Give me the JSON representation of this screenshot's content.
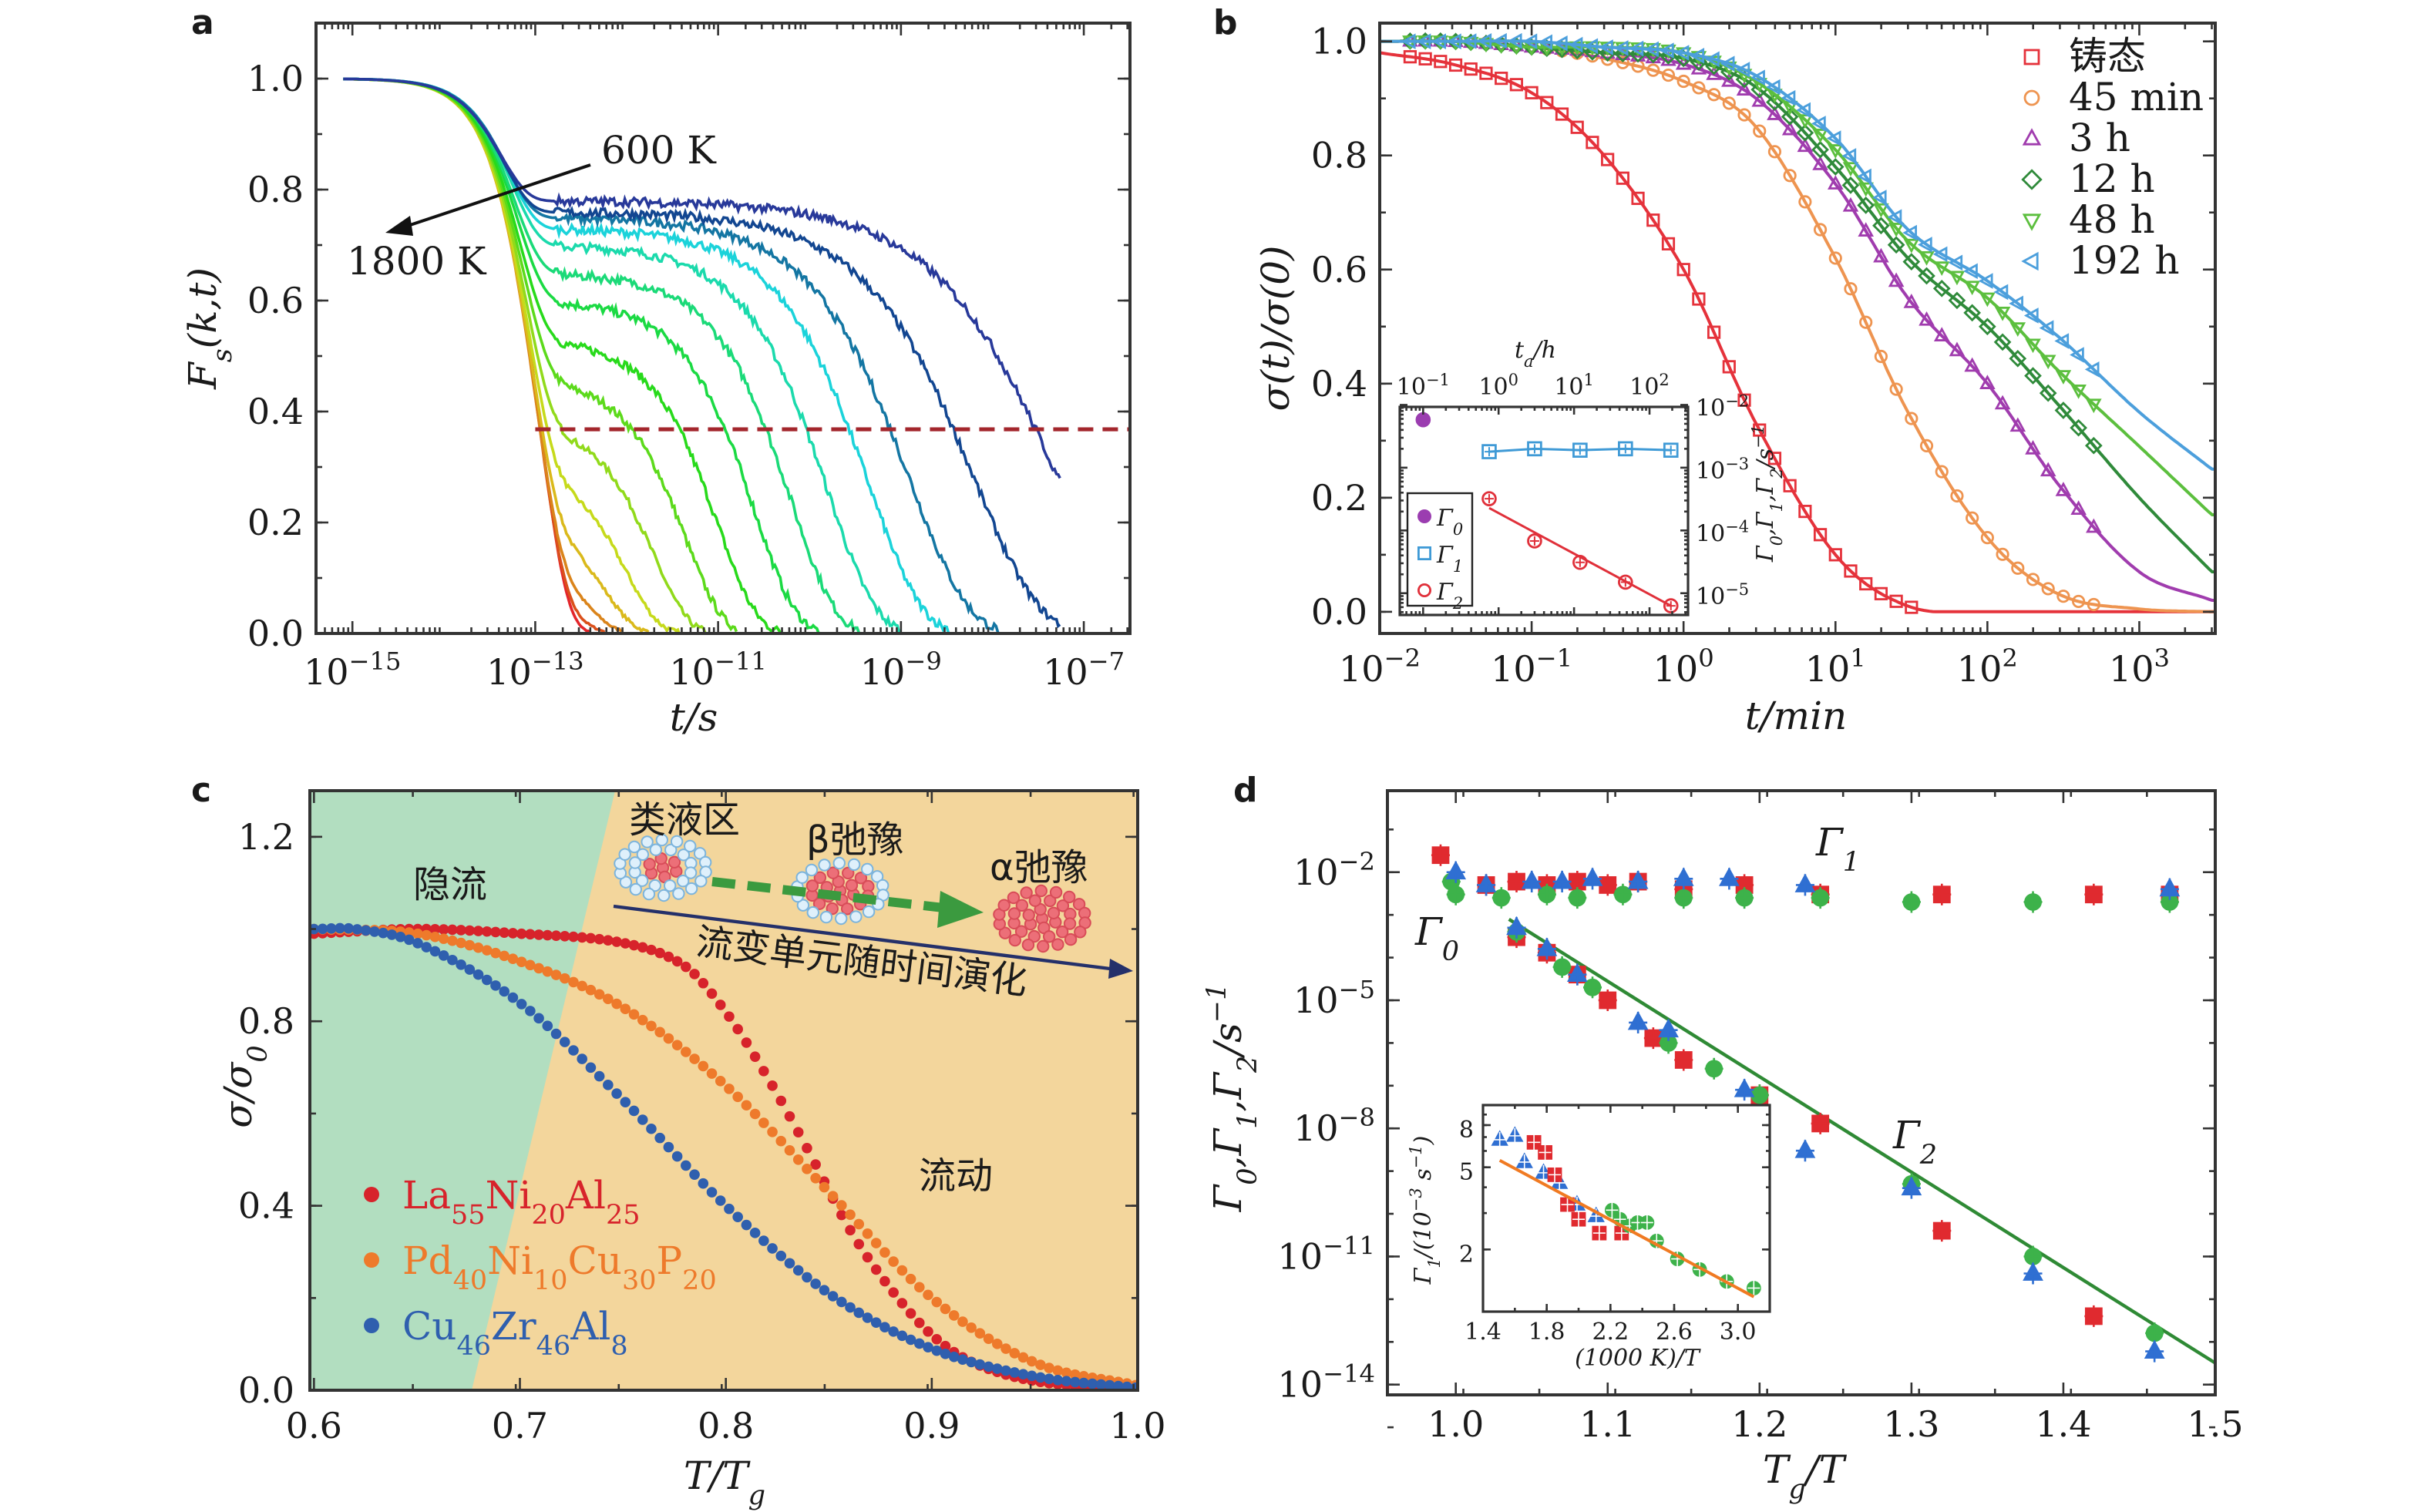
{
  "panel_labels": {
    "a": "a",
    "b": "b",
    "c": "c",
    "d": "d"
  },
  "chart_data": [
    {
      "panel": "a",
      "type": "line",
      "xlabel": "t/s",
      "ylabel": "F_{s}(k,t)",
      "xscale": "log",
      "yscale": "linear",
      "xlim": [
        4e-16,
        3.2e-07
      ],
      "ylim": [
        0,
        1.1
      ],
      "xticks": [
        {
          "v": 1e-15,
          "label": "10^{−15}"
        },
        {
          "v": 1e-13,
          "label": "10^{−13}"
        },
        {
          "v": 1e-11,
          "label": "10^{−11}"
        },
        {
          "v": 1e-09,
          "label": "10^{−9}"
        },
        {
          "v": 1e-07,
          "label": "10^{−7}"
        }
      ],
      "yticks": [
        {
          "v": 0,
          "label": "0.0"
        },
        {
          "v": 0.2,
          "label": "0.2"
        },
        {
          "v": 0.4,
          "label": "0.4"
        },
        {
          "v": 0.6,
          "label": "0.6"
        },
        {
          "v": 0.8,
          "label": "0.8"
        },
        {
          "v": 1.0,
          "label": "1.0"
        }
      ],
      "annotations": {
        "low_T": "600 K",
        "high_T": "1800 K"
      },
      "reference_line": {
        "y": 0.368,
        "x_from": 1e-13,
        "style": "dashed",
        "color": "#a3262c"
      },
      "colors": {
        "hot": "#e3262b",
        "cold": "#28399a"
      },
      "series": [
        {
          "plateau": 0.05,
          "tau_alpha": 1.78e-13
        },
        {
          "plateau": 0.1,
          "tau_alpha": 2.51e-13
        },
        {
          "plateau": 0.15,
          "tau_alpha": 3.55e-13
        },
        {
          "plateau": 0.22,
          "tau_alpha": 5.62e-13
        },
        {
          "plateau": 0.3,
          "tau_alpha": 1e-12
        },
        {
          "plateau": 0.38,
          "tau_alpha": 2e-12
        },
        {
          "plateau": 0.46,
          "tau_alpha": 4.47e-12
        },
        {
          "plateau": 0.53,
          "tau_alpha": 1e-11
        },
        {
          "plateau": 0.6,
          "tau_alpha": 2.51e-11
        },
        {
          "plateau": 0.65,
          "tau_alpha": 6.31e-11
        },
        {
          "plateau": 0.7,
          "tau_alpha": 1.58e-10
        },
        {
          "plateau": 0.73,
          "tau_alpha": 4.47e-10
        },
        {
          "plateau": 0.75,
          "tau_alpha": 1.26e-09
        },
        {
          "plateau": 0.76,
          "tau_alpha": 6.31e-09
        },
        {
          "plateau": 0.78,
          "tau_alpha": 5.01e-08
        }
      ]
    },
    {
      "panel": "b",
      "type": "line",
      "xlabel": "t/min",
      "ylabel": "σ(t)/σ(0)",
      "xscale": "log",
      "yscale": "linear",
      "xlim": [
        0.01,
        3162
      ],
      "ylim": [
        -0.038,
        1.032
      ],
      "xticks": [
        {
          "v": 0.01,
          "label": "10^{−2}"
        },
        {
          "v": 0.1,
          "label": "10^{−1}"
        },
        {
          "v": 1,
          "label": "10^{0}"
        },
        {
          "v": 10,
          "label": "10^{1}"
        },
        {
          "v": 100,
          "label": "10^{2}"
        },
        {
          "v": 1000,
          "label": "10^{3}"
        }
      ],
      "yticks": [
        {
          "v": 0,
          "label": "0.0"
        },
        {
          "v": 0.2,
          "label": "0.2"
        },
        {
          "v": 0.4,
          "label": "0.4"
        },
        {
          "v": 0.6,
          "label": "0.6"
        },
        {
          "v": 0.8,
          "label": "0.8"
        },
        {
          "v": 1.0,
          "label": "1.0"
        }
      ],
      "legend_position": "top-right",
      "t": [
        0.01,
        0.03,
        0.1,
        0.3,
        1,
        3,
        10,
        30,
        100,
        300,
        1000,
        3000
      ],
      "series": [
        {
          "name": "铸态",
          "marker": "square",
          "color": "#e5323b",
          "markers_t_max": 35,
          "values": [
            0.98,
            0.96,
            0.91,
            0.8,
            0.6,
            0.33,
            0.1,
            0.01,
            0,
            0,
            0,
            0
          ]
        },
        {
          "name": "45 min",
          "marker": "circle",
          "color": "#ee9450",
          "markers_t_max": 600,
          "values": [
            1.0,
            1.0,
            0.99,
            0.97,
            0.93,
            0.85,
            0.62,
            0.35,
            0.13,
            0.03,
            0.005,
            0
          ]
        },
        {
          "name": "3 h",
          "marker": "triangle-up",
          "color": "#a03cae",
          "markers_t_max": 600,
          "values": [
            1,
            1,
            0.99,
            0.98,
            0.96,
            0.9,
            0.75,
            0.55,
            0.4,
            0.22,
            0.07,
            0.02
          ]
        },
        {
          "name": "12 h",
          "marker": "diamond",
          "color": "#2f8a3a",
          "markers_t_max": 600,
          "values": [
            1,
            1,
            0.99,
            0.98,
            0.97,
            0.92,
            0.78,
            0.62,
            0.5,
            0.36,
            0.2,
            0.07
          ]
        },
        {
          "name": "48 h",
          "marker": "triangle-down",
          "color": "#5cbf3e",
          "markers_t_max": 600,
          "values": [
            1,
            1,
            0.99,
            0.99,
            0.98,
            0.93,
            0.81,
            0.65,
            0.55,
            0.42,
            0.29,
            0.17
          ]
        },
        {
          "name": "192 h",
          "marker": "triangle-left",
          "color": "#4c9fdc",
          "markers_t_max": 600,
          "values": [
            1,
            1,
            1,
            0.99,
            0.98,
            0.94,
            0.83,
            0.67,
            0.58,
            0.48,
            0.35,
            0.25
          ]
        }
      ]
    },
    {
      "panel": "b-inset",
      "type": "scatter",
      "xlabel": "t_{a}/h",
      "ylabel": "Γ_{0},Γ_{1},Γ_{2}/s^{−1}",
      "xscale": "log",
      "yscale": "log",
      "xlim": [
        0.049,
        324
      ],
      "ylim": [
        4.5e-06,
        0.0093
      ],
      "xticks": [
        {
          "v": 0.1,
          "label": "10^{−1}"
        },
        {
          "v": 1,
          "label": "10^{0}"
        },
        {
          "v": 10,
          "label": "10^{1}"
        },
        {
          "v": 100,
          "label": "10^{2}"
        }
      ],
      "yticks": [
        {
          "v": 0.01,
          "label": "10^{−2}"
        },
        {
          "v": 0.001,
          "label": "10^{−3}"
        },
        {
          "v": 0.0001,
          "label": "10^{−4}"
        },
        {
          "v": 1e-05,
          "label": "10^{−5}"
        }
      ],
      "legend_position": "bottom-left",
      "series": [
        {
          "name": "Γ_{0}",
          "marker": "circle-filled",
          "color": "#9b3db0",
          "x": [
            0.1
          ],
          "y": [
            0.0058
          ]
        },
        {
          "name": "Γ_{1}",
          "marker": "square",
          "color": "#3f9ad6",
          "x": [
            0.75,
            3,
            12,
            48,
            192
          ],
          "y": [
            0.0018,
            0.002,
            0.0019,
            0.002,
            0.0019
          ],
          "line": "connect"
        },
        {
          "name": "Γ_{2}",
          "marker": "circle",
          "color": "#e0303a",
          "x": [
            0.75,
            3,
            12,
            48,
            192
          ],
          "y": [
            0.00032,
            6.8e-05,
            3.1e-05,
            1.5e-05,
            6.3e-06
          ],
          "line": "fit"
        }
      ]
    },
    {
      "panel": "c",
      "type": "scatter",
      "xlabel": "T/T_{g}",
      "ylabel": "σ/σ_{0}",
      "xscale": "linear",
      "yscale": "linear",
      "xlim": [
        0.598,
        1.0
      ],
      "ylim": [
        0,
        1.3
      ],
      "xticks": [
        {
          "v": 0.6,
          "label": "0.6"
        },
        {
          "v": 0.7,
          "label": "0.7"
        },
        {
          "v": 0.8,
          "label": "0.8"
        },
        {
          "v": 0.9,
          "label": "0.9"
        },
        {
          "v": 1.0,
          "label": "1.0"
        }
      ],
      "yticks": [
        {
          "v": 0,
          "label": "0.0"
        },
        {
          "v": 0.4,
          "label": "0.4"
        },
        {
          "v": 0.8,
          "label": "0.8"
        },
        {
          "v": 1.2,
          "label": "1.2"
        }
      ],
      "legend_position": "bottom-left",
      "regions": {
        "hidden_flow": "隐流",
        "liquid_like": "类液区",
        "beta": "β弛豫",
        "alpha": "α弛豫",
        "flow": "流动",
        "evolution": "流变单元随时间演化",
        "colors": {
          "hidden_flow": "#b2dec0",
          "flow": "#f3d69c",
          "arrow": "#24306a",
          "dashed_arrow": "#3b9a3f"
        }
      },
      "series": [
        {
          "name": "La_{55}Ni_{20}Al_{25}",
          "color": "#d7232b",
          "x": [
            0.6,
            0.65,
            0.7,
            0.75,
            0.78,
            0.8,
            0.82,
            0.84,
            0.86,
            0.88,
            0.9,
            0.92,
            0.95,
            1.0
          ],
          "y": [
            0.99,
            1.0,
            0.99,
            0.97,
            0.92,
            0.82,
            0.68,
            0.52,
            0.35,
            0.22,
            0.12,
            0.06,
            0.02,
            0.0
          ]
        },
        {
          "name": "Pd_{40}Ni_{10}Cu_{30}P_{20}",
          "color": "#ee7a2b",
          "x": [
            0.6,
            0.65,
            0.7,
            0.75,
            0.8,
            0.85,
            0.9,
            0.95,
            1.0
          ],
          "y": [
            1.0,
            0.99,
            0.93,
            0.83,
            0.66,
            0.43,
            0.2,
            0.06,
            0.01
          ]
        },
        {
          "name": "Cu_{46}Zr_{46}Al_{8}",
          "color": "#2f5fae",
          "x": [
            0.6,
            0.62,
            0.65,
            0.7,
            0.75,
            0.8,
            0.85,
            0.9,
            0.95,
            1.0
          ],
          "y": [
            1.0,
            1.0,
            0.97,
            0.84,
            0.63,
            0.4,
            0.21,
            0.09,
            0.03,
            0.005
          ]
        }
      ]
    },
    {
      "panel": "d",
      "type": "scatter",
      "xlabel": "T_{g}/T",
      "ylabel": "Γ_{0},Γ_{1},Γ_{2}/s^{−1}",
      "xscale": "linear",
      "yscale": "log",
      "xlim": [
        0.955,
        1.5
      ],
      "ylim": [
        5.75e-15,
        0.81
      ],
      "xticks": [
        {
          "v": 1.0,
          "label": "1.0"
        },
        {
          "v": 1.1,
          "label": "1.1"
        },
        {
          "v": 1.2,
          "label": "1.2"
        },
        {
          "v": 1.3,
          "label": "1.3"
        },
        {
          "v": 1.4,
          "label": "1.4"
        },
        {
          "v": 1.5,
          "label": "1.5"
        }
      ],
      "yticks": [
        {
          "v": 0.01,
          "label": "10^{−2}"
        },
        {
          "v": 1e-05,
          "label": "10^{−5}"
        },
        {
          "v": 1e-08,
          "label": "10^{−8}"
        },
        {
          "v": 1e-11,
          "label": "10^{−11}"
        },
        {
          "v": 1e-14,
          "label": "10^{−14}"
        }
      ],
      "annotations": {
        "gamma0": "Γ_{0}",
        "gamma1": "Γ_{1}",
        "gamma2": "Γ_{2}"
      },
      "fit_line": {
        "color": "#2f8a35",
        "x": [
          1.035,
          1.5
        ],
        "y": [
          0.00079,
          3.2e-14
        ]
      },
      "series": [
        {
          "marker": "square",
          "color": "#e02a2f",
          "gamma0": {
            "x": [
              0.99
            ],
            "y": [
              0.025
            ]
          },
          "gamma1": {
            "x": [
              1.02,
              1.04,
              1.06,
              1.08,
              1.1,
              1.12,
              1.15,
              1.19,
              1.24,
              1.32,
              1.42,
              1.47
            ],
            "y": [
              0.005,
              0.006,
              0.005,
              0.006,
              0.005,
              0.006,
              0.004,
              0.005,
              0.003,
              0.003,
              0.003,
              0.003
            ]
          },
          "gamma2": {
            "x": [
              1.04,
              1.06,
              1.08,
              1.1,
              1.13,
              1.15,
              1.2,
              1.24,
              1.32,
              1.42
            ],
            "y": [
              0.0003,
              0.00013,
              4e-05,
              1e-05,
              1.3e-06,
              4e-07,
              6e-08,
              1.3e-08,
              4e-11,
              4e-13
            ]
          }
        },
        {
          "marker": "circle",
          "color": "#3db24a",
          "gamma0": {
            "x": [
              0.997
            ],
            "y": [
              0.006
            ]
          },
          "gamma1": {
            "x": [
              1.0,
              1.03,
              1.06,
              1.08,
              1.11,
              1.15,
              1.19,
              1.24,
              1.3,
              1.38,
              1.47
            ],
            "y": [
              0.003,
              0.0025,
              0.003,
              0.0025,
              0.003,
              0.0025,
              0.0025,
              0.0025,
              0.002,
              0.002,
              0.002
            ]
          },
          "gamma2": {
            "x": [
              1.04,
              1.07,
              1.09,
              1.14,
              1.17,
              1.2,
              1.3,
              1.38,
              1.46
            ],
            "y": [
              0.0004,
              6e-05,
              2e-05,
              1e-06,
              2.5e-07,
              6e-08,
              5e-10,
              1e-11,
              1.6e-13
            ]
          }
        },
        {
          "marker": "triangle-up",
          "color": "#2f6fd2",
          "gamma0": {
            "x": [
              1.0
            ],
            "y": [
              0.01
            ]
          },
          "gamma1": {
            "x": [
              1.02,
              1.05,
              1.07,
              1.09,
              1.12,
              1.15,
              1.18,
              1.23,
              1.47
            ],
            "y": [
              0.005,
              0.006,
              0.006,
              0.007,
              0.006,
              0.007,
              0.007,
              0.005,
              0.004
            ]
          },
          "gamma2": {
            "x": [
              1.04,
              1.06,
              1.08,
              1.12,
              1.14,
              1.19,
              1.23,
              1.3,
              1.38,
              1.46
            ],
            "y": [
              0.0005,
              0.00016,
              4e-05,
              3e-06,
              2e-06,
              8e-08,
              3e-09,
              4e-10,
              4e-12,
              6e-14
            ]
          }
        }
      ]
    },
    {
      "panel": "d-inset",
      "type": "scatter",
      "xlabel": "(1000 K)/T",
      "ylabel": "Γ_{1}/(10^{−3} s^{−1})",
      "xscale": "linear",
      "yscale": "log",
      "xlim": [
        1.4,
        3.2
      ],
      "ylim": [
        1,
        10
      ],
      "xticks": [
        {
          "v": 1.4,
          "label": "1.4"
        },
        {
          "v": 1.8,
          "label": "1.8"
        },
        {
          "v": 2.2,
          "label": "2.2"
        },
        {
          "v": 2.6,
          "label": "2.6"
        },
        {
          "v": 3.0,
          "label": "3.0"
        }
      ],
      "yticks": [
        {
          "v": 2,
          "label": "2"
        },
        {
          "v": 5,
          "label": "5"
        },
        {
          "v": 8,
          "label": "8"
        }
      ],
      "fit_line": {
        "color": "#f07a22",
        "x": [
          1.505,
          3.1
        ],
        "y": [
          5.4,
          1.18
        ]
      },
      "series": [
        {
          "marker": "triangle-up",
          "color": "#2f6fd2",
          "x": [
            1.505,
            1.6,
            1.66,
            1.78,
            1.88,
            1.99,
            2.11
          ],
          "y": [
            6.8,
            7.1,
            5.3,
            4.7,
            4.2,
            3.3,
            2.9
          ]
        },
        {
          "marker": "square",
          "color": "#e02a2f",
          "x": [
            1.72,
            1.79,
            1.85,
            1.93,
            2.0,
            2.13,
            2.27
          ],
          "y": [
            6.6,
            5.9,
            4.6,
            3.3,
            2.8,
            2.4,
            2.4
          ]
        },
        {
          "marker": "circle",
          "color": "#3db24a",
          "x": [
            2.21,
            2.26,
            2.32,
            2.37,
            2.43,
            2.49,
            2.62,
            2.76,
            2.93,
            3.1
          ],
          "y": [
            3.1,
            2.8,
            2.6,
            2.7,
            2.7,
            2.2,
            1.8,
            1.6,
            1.4,
            1.3
          ]
        }
      ]
    }
  ]
}
